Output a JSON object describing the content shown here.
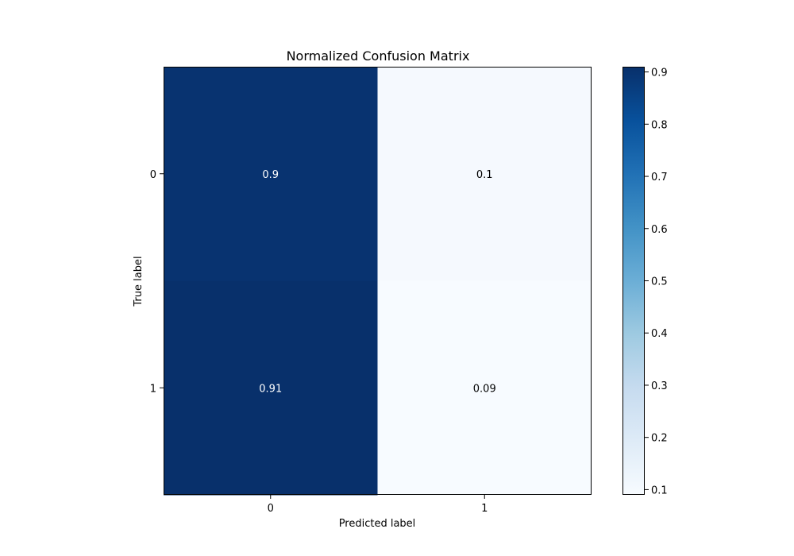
{
  "chart_data": {
    "type": "heatmap",
    "title": "Normalized Confusion Matrix",
    "xlabel": "Predicted label",
    "ylabel": "True label",
    "x_categories": [
      "0",
      "1"
    ],
    "y_categories": [
      "0",
      "1"
    ],
    "values": [
      [
        0.9,
        0.1
      ],
      [
        0.91,
        0.09
      ]
    ],
    "cell_labels": [
      [
        "0.9",
        "0.1"
      ],
      [
        "0.91",
        "0.09"
      ]
    ],
    "colormap": "Blues",
    "colorbar": {
      "range": [
        0.09,
        0.91
      ],
      "ticks": [
        0.1,
        0.2,
        0.3,
        0.4,
        0.5,
        0.6,
        0.7,
        0.8,
        0.9
      ],
      "tick_labels": [
        "0.1",
        "0.2",
        "0.3",
        "0.4",
        "0.5",
        "0.6",
        "0.7",
        "0.8",
        "0.9"
      ]
    },
    "grid": false,
    "colors": {
      "high": "#08306b",
      "low": "#f7fbff"
    }
  }
}
